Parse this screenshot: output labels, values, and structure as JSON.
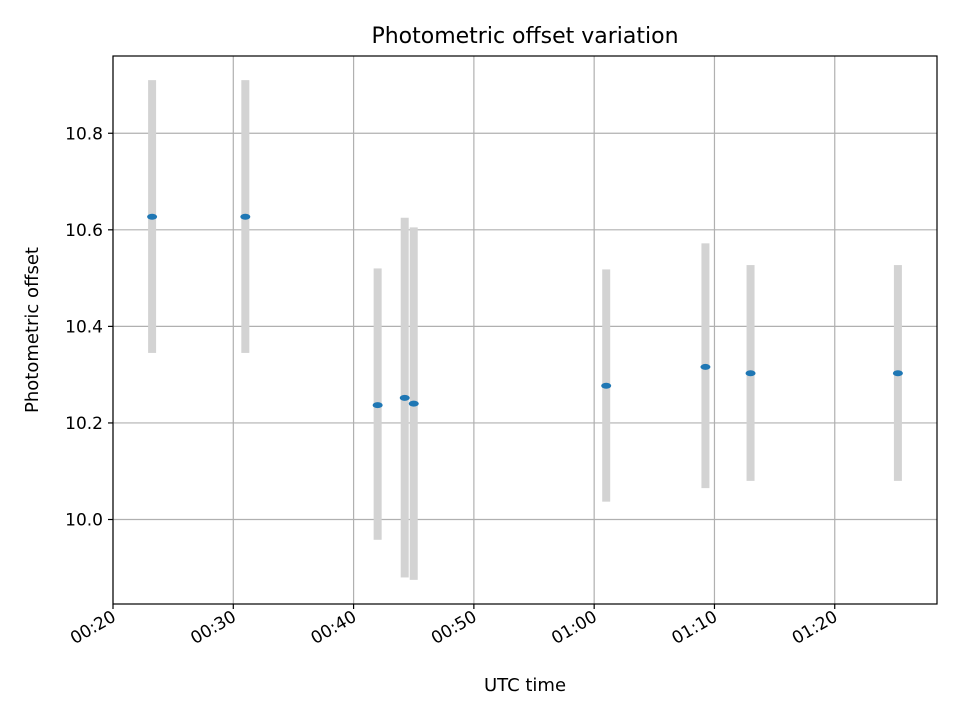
{
  "chart_data": {
    "type": "scatter",
    "title": "Photometric offset variation",
    "xlabel": "UTC time",
    "ylabel": "Photometric offset",
    "grid": true,
    "x_ticks": [
      "00:20",
      "00:30",
      "00:40",
      "00:50",
      "01:00",
      "01:10",
      "01:20"
    ],
    "y_ticks": [
      "10.0",
      "10.2",
      "10.4",
      "10.6",
      "10.8"
    ],
    "xlim": [
      "00:20",
      "01:28:30"
    ],
    "ylim": [
      9.825,
      10.96
    ],
    "colors": {
      "point": "#1f77b4",
      "error_bar": "#d3d3d3"
    },
    "points": [
      {
        "x": "00:23:15",
        "y": 10.627,
        "ylow": 10.345,
        "yhigh": 10.91
      },
      {
        "x": "00:31:00",
        "y": 10.627,
        "ylow": 10.345,
        "yhigh": 10.91
      },
      {
        "x": "00:42:00",
        "y": 10.237,
        "ylow": 9.958,
        "yhigh": 10.52
      },
      {
        "x": "00:44:15",
        "y": 10.252,
        "ylow": 9.88,
        "yhigh": 10.625
      },
      {
        "x": "00:45:00",
        "y": 10.24,
        "ylow": 9.875,
        "yhigh": 10.605
      },
      {
        "x": "01:01:00",
        "y": 10.277,
        "ylow": 10.037,
        "yhigh": 10.518
      },
      {
        "x": "01:09:15",
        "y": 10.316,
        "ylow": 10.065,
        "yhigh": 10.572
      },
      {
        "x": "01:13:00",
        "y": 10.303,
        "ylow": 10.08,
        "yhigh": 10.527
      },
      {
        "x": "01:25:15",
        "y": 10.303,
        "ylow": 10.08,
        "yhigh": 10.527
      }
    ]
  }
}
